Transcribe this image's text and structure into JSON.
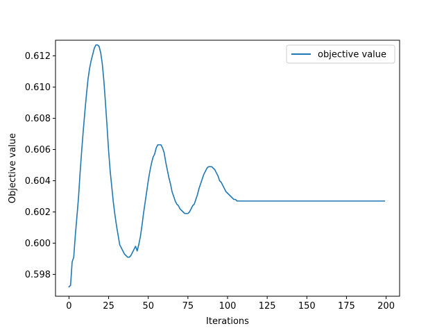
{
  "chart_data": {
    "type": "line",
    "title": "",
    "xlabel": "Iterations",
    "ylabel": "Objective value",
    "xlim": [
      -8.5,
      208.5
    ],
    "ylim": [
      0.5966,
      0.613
    ],
    "xticks": [
      0,
      25,
      50,
      75,
      100,
      125,
      150,
      175,
      200
    ],
    "xtick_labels": [
      "0",
      "25",
      "50",
      "75",
      "100",
      "125",
      "150",
      "175",
      "200"
    ],
    "yticks": [
      0.598,
      0.6,
      0.602,
      0.604,
      0.606,
      0.608,
      0.61,
      0.612
    ],
    "ytick_labels": [
      "0.598",
      "0.600",
      "0.602",
      "0.604",
      "0.606",
      "0.608",
      "0.610",
      "0.612"
    ],
    "grid": false,
    "legend_position": "top-right",
    "color": "#1f77b4",
    "series": [
      {
        "name": "objective value",
        "x": [
          0,
          1,
          2,
          3,
          4,
          5,
          6,
          7,
          8,
          9,
          10,
          11,
          12,
          13,
          14,
          15,
          16,
          17,
          18,
          19,
          20,
          21,
          22,
          23,
          24,
          25,
          26,
          27,
          28,
          29,
          30,
          31,
          32,
          33,
          34,
          35,
          36,
          37,
          38,
          39,
          40,
          41,
          42,
          43,
          44,
          45,
          46,
          47,
          48,
          49,
          50,
          51,
          52,
          53,
          54,
          55,
          56,
          57,
          58,
          59,
          60,
          61,
          62,
          63,
          64,
          65,
          66,
          67,
          68,
          69,
          70,
          71,
          72,
          73,
          74,
          75,
          76,
          77,
          78,
          79,
          80,
          81,
          82,
          83,
          84,
          85,
          86,
          87,
          88,
          89,
          90,
          91,
          92,
          93,
          94,
          95,
          96,
          97,
          98,
          99,
          100,
          101,
          102,
          103,
          104,
          105,
          106,
          107,
          108,
          109,
          110,
          111,
          112,
          113,
          114,
          115,
          116,
          117,
          118,
          119,
          120,
          121,
          122,
          199
        ],
        "values": [
          0.5972,
          0.5973,
          0.5988,
          0.5991,
          0.6005,
          0.6017,
          0.6029,
          0.6045,
          0.6059,
          0.6072,
          0.6084,
          0.6095,
          0.6105,
          0.6112,
          0.6117,
          0.6121,
          0.6125,
          0.6127,
          0.6127,
          0.6126,
          0.6122,
          0.6115,
          0.6104,
          0.609,
          0.6075,
          0.6059,
          0.6046,
          0.6036,
          0.6026,
          0.6018,
          0.6011,
          0.6005,
          0.5999,
          0.5997,
          0.5995,
          0.5993,
          0.5992,
          0.5991,
          0.5991,
          0.5992,
          0.5994,
          0.5996,
          0.5998,
          0.5995,
          0.5999,
          0.6004,
          0.6011,
          0.6019,
          0.6026,
          0.6033,
          0.604,
          0.6046,
          0.6051,
          0.6055,
          0.6057,
          0.6061,
          0.6063,
          0.6063,
          0.6063,
          0.6061,
          0.6058,
          0.6052,
          0.6047,
          0.6042,
          0.6038,
          0.6033,
          0.603,
          0.6027,
          0.6025,
          0.6024,
          0.6022,
          0.6021,
          0.602,
          0.6019,
          0.6019,
          0.6019,
          0.602,
          0.6022,
          0.6024,
          0.6025,
          0.6028,
          0.6031,
          0.6035,
          0.6038,
          0.6041,
          0.6044,
          0.6046,
          0.6048,
          0.6049,
          0.6049,
          0.6049,
          0.6048,
          0.6047,
          0.6045,
          0.6043,
          0.604,
          0.6039,
          0.6037,
          0.6035,
          0.6033,
          0.6032,
          0.6031,
          0.603,
          0.6029,
          0.6028,
          0.6028,
          0.6027,
          0.6027,
          0.6027,
          0.6027,
          0.6027,
          0.6027,
          0.6027,
          0.6027,
          0.6027,
          0.6027,
          0.6027,
          0.6027,
          0.6027,
          0.6027,
          0.6027,
          0.6027,
          0.6027,
          0.6027
        ]
      }
    ]
  }
}
